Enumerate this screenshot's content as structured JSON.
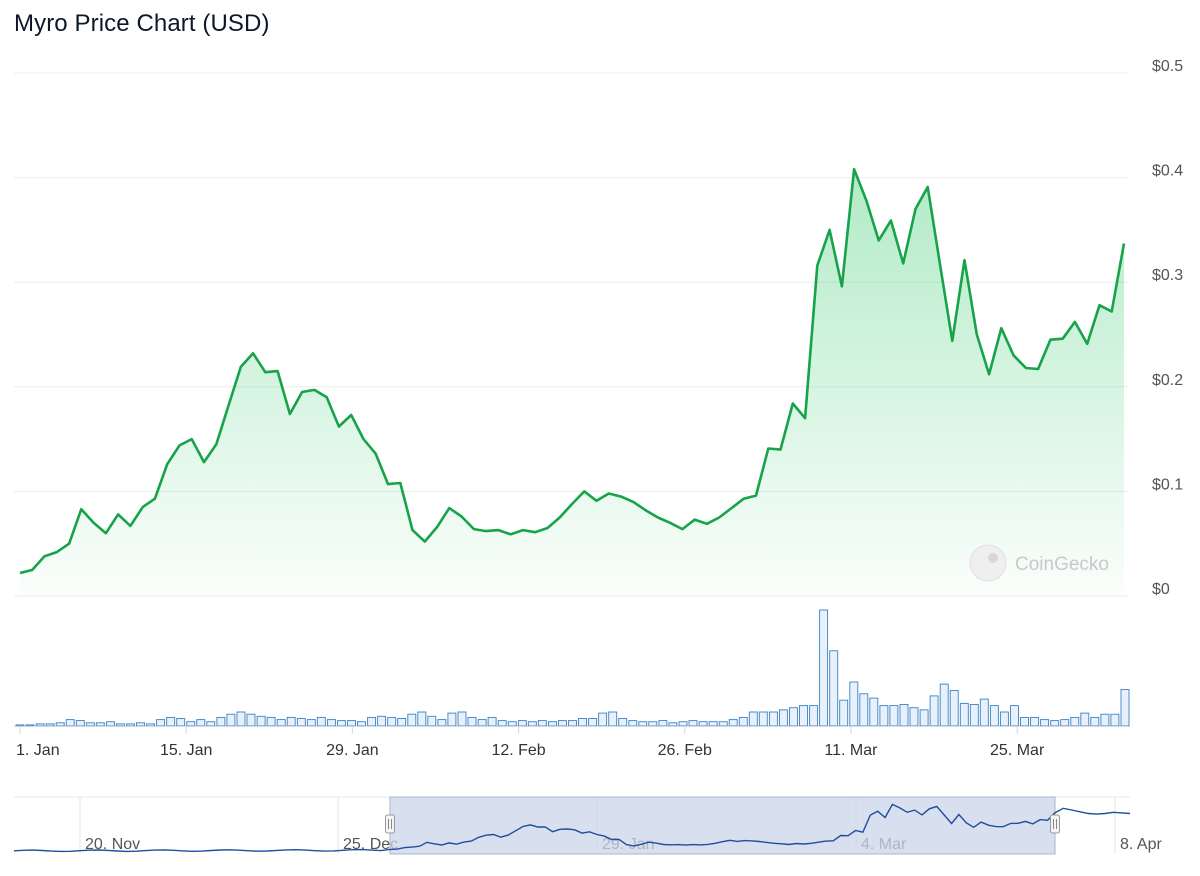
{
  "title": "Myro Price Chart (USD)",
  "watermark": "CoinGecko",
  "colors": {
    "line": "#16a34a",
    "area": "#22c55e",
    "volume": "#3b82c4",
    "volumeFill": "#e8f1fb",
    "navigator": "#1f4e9c",
    "navigatorMask": "#cbd5ea"
  },
  "chart_data": {
    "type": "area",
    "title": "Myro Price Chart (USD)",
    "ylabel": "",
    "xlabel": "",
    "ylim": [
      0,
      0.5
    ],
    "y_ticks": [
      "$0",
      "$0.1",
      "$0.2",
      "$0.3",
      "$0.4",
      "$0.5"
    ],
    "x_ticks": [
      "1. Jan",
      "15. Jan",
      "29. Jan",
      "12. Feb",
      "26. Feb",
      "11. Mar",
      "25. Mar"
    ],
    "x_range": [
      "2024-01-01",
      "2024-04-03"
    ],
    "grid": true,
    "series": [
      {
        "values": [
          0.022,
          0.025,
          0.038,
          0.042,
          0.05,
          0.083,
          0.07,
          0.06,
          0.078,
          0.067,
          0.085,
          0.093,
          0.126,
          0.144,
          0.15,
          0.128,
          0.145,
          0.182,
          0.219,
          0.232,
          0.214,
          0.215,
          0.174,
          0.195,
          0.197,
          0.19,
          0.162,
          0.173,
          0.15,
          0.136,
          0.107,
          0.108,
          0.063,
          0.052,
          0.066,
          0.084,
          0.076,
          0.064,
          0.062,
          0.063,
          0.059,
          0.063,
          0.061,
          0.065,
          0.075,
          0.088,
          0.1,
          0.091,
          0.098,
          0.095,
          0.09,
          0.082,
          0.075,
          0.07,
          0.064,
          0.073,
          0.069,
          0.075,
          0.084,
          0.093,
          0.096,
          0.141,
          0.14,
          0.184,
          0.17,
          0.316,
          0.35,
          0.296,
          0.408,
          0.378,
          0.34,
          0.359,
          0.318,
          0.37,
          0.391,
          0.317,
          0.244,
          0.321,
          0.25,
          0.212,
          0.256,
          0.23,
          0.218,
          0.217,
          0.245,
          0.246,
          0.262,
          0.241,
          0.278,
          0.272,
          0.337
        ]
      }
    ],
    "volume": {
      "values": [
        1,
        1,
        2,
        2,
        3,
        6,
        5,
        3,
        3,
        4,
        2,
        2,
        3,
        2,
        6,
        8,
        7,
        4,
        6,
        4,
        8,
        11,
        13,
        11,
        9,
        8,
        6,
        8,
        7,
        6,
        8,
        6,
        5,
        5,
        4,
        8,
        9,
        8,
        7,
        11,
        13,
        9,
        6,
        12,
        13,
        8,
        6,
        8,
        5,
        4,
        5,
        4,
        5,
        4,
        5,
        5,
        7,
        7,
        12,
        13,
        7,
        5,
        4,
        4,
        5,
        3,
        4,
        5,
        4,
        4,
        4,
        6,
        8,
        13,
        13,
        13,
        15,
        17,
        19,
        19,
        108,
        70,
        24,
        41,
        30,
        26,
        19,
        19,
        20,
        17,
        15,
        28,
        39,
        33,
        21,
        20,
        25,
        19,
        13,
        19,
        8,
        8,
        6,
        5,
        6,
        8,
        12,
        8,
        11,
        11,
        34
      ]
    },
    "navigator": {
      "x_ticks": [
        "20. Nov",
        "25. Dec",
        "29. Jan",
        "4. Mar",
        "8. Apr"
      ]
    }
  }
}
